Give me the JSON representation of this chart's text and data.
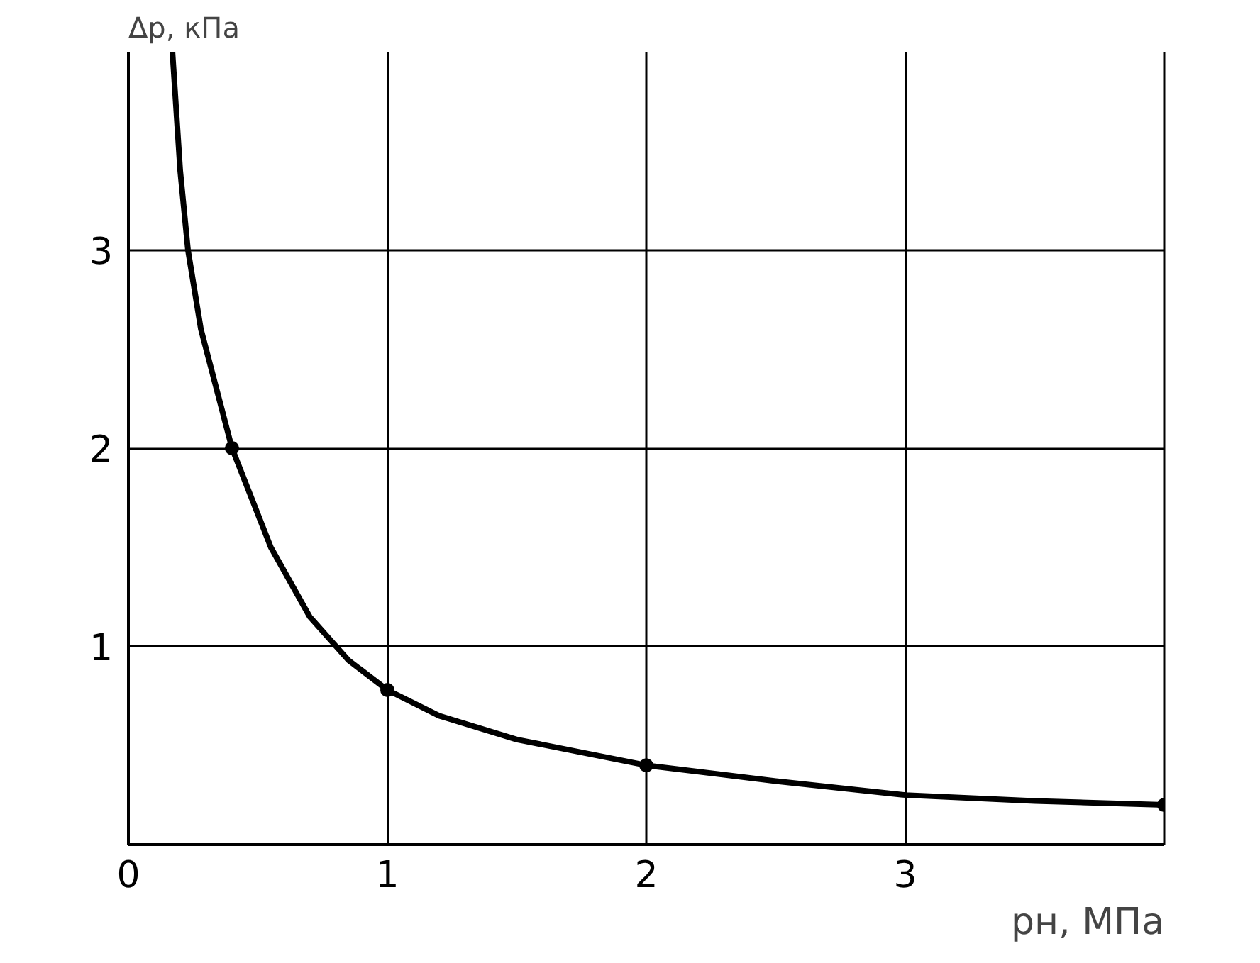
{
  "chart_data": {
    "type": "line",
    "xlabel": "pн, МПа",
    "ylabel": "Δp, кПа",
    "series": [
      {
        "type": "line",
        "color": "#000000",
        "marker": "none",
        "x": [
          0.17,
          0.2,
          0.23,
          0.28,
          0.4,
          0.55,
          0.7,
          0.85,
          1,
          1.2,
          1.5,
          2,
          2.5,
          3,
          3.5,
          4
        ],
        "values": [
          4,
          3.4,
          3,
          2.6,
          2,
          1.5,
          1.15,
          0.93,
          0.78,
          0.65,
          0.53,
          0.4,
          0.32,
          0.25,
          0.22,
          0.2
        ]
      },
      {
        "type": "scatter",
        "color": "#000000",
        "marker": "circle",
        "x": [
          0.4,
          1,
          2,
          4
        ],
        "values": [
          2,
          0.78,
          0.4,
          0.2
        ]
      }
    ],
    "xlim": [
      0,
      4
    ],
    "ylim": [
      0,
      4
    ],
    "xticks": [
      0,
      1,
      2,
      3
    ],
    "yticks": [
      1,
      2,
      3
    ],
    "grid": true
  }
}
